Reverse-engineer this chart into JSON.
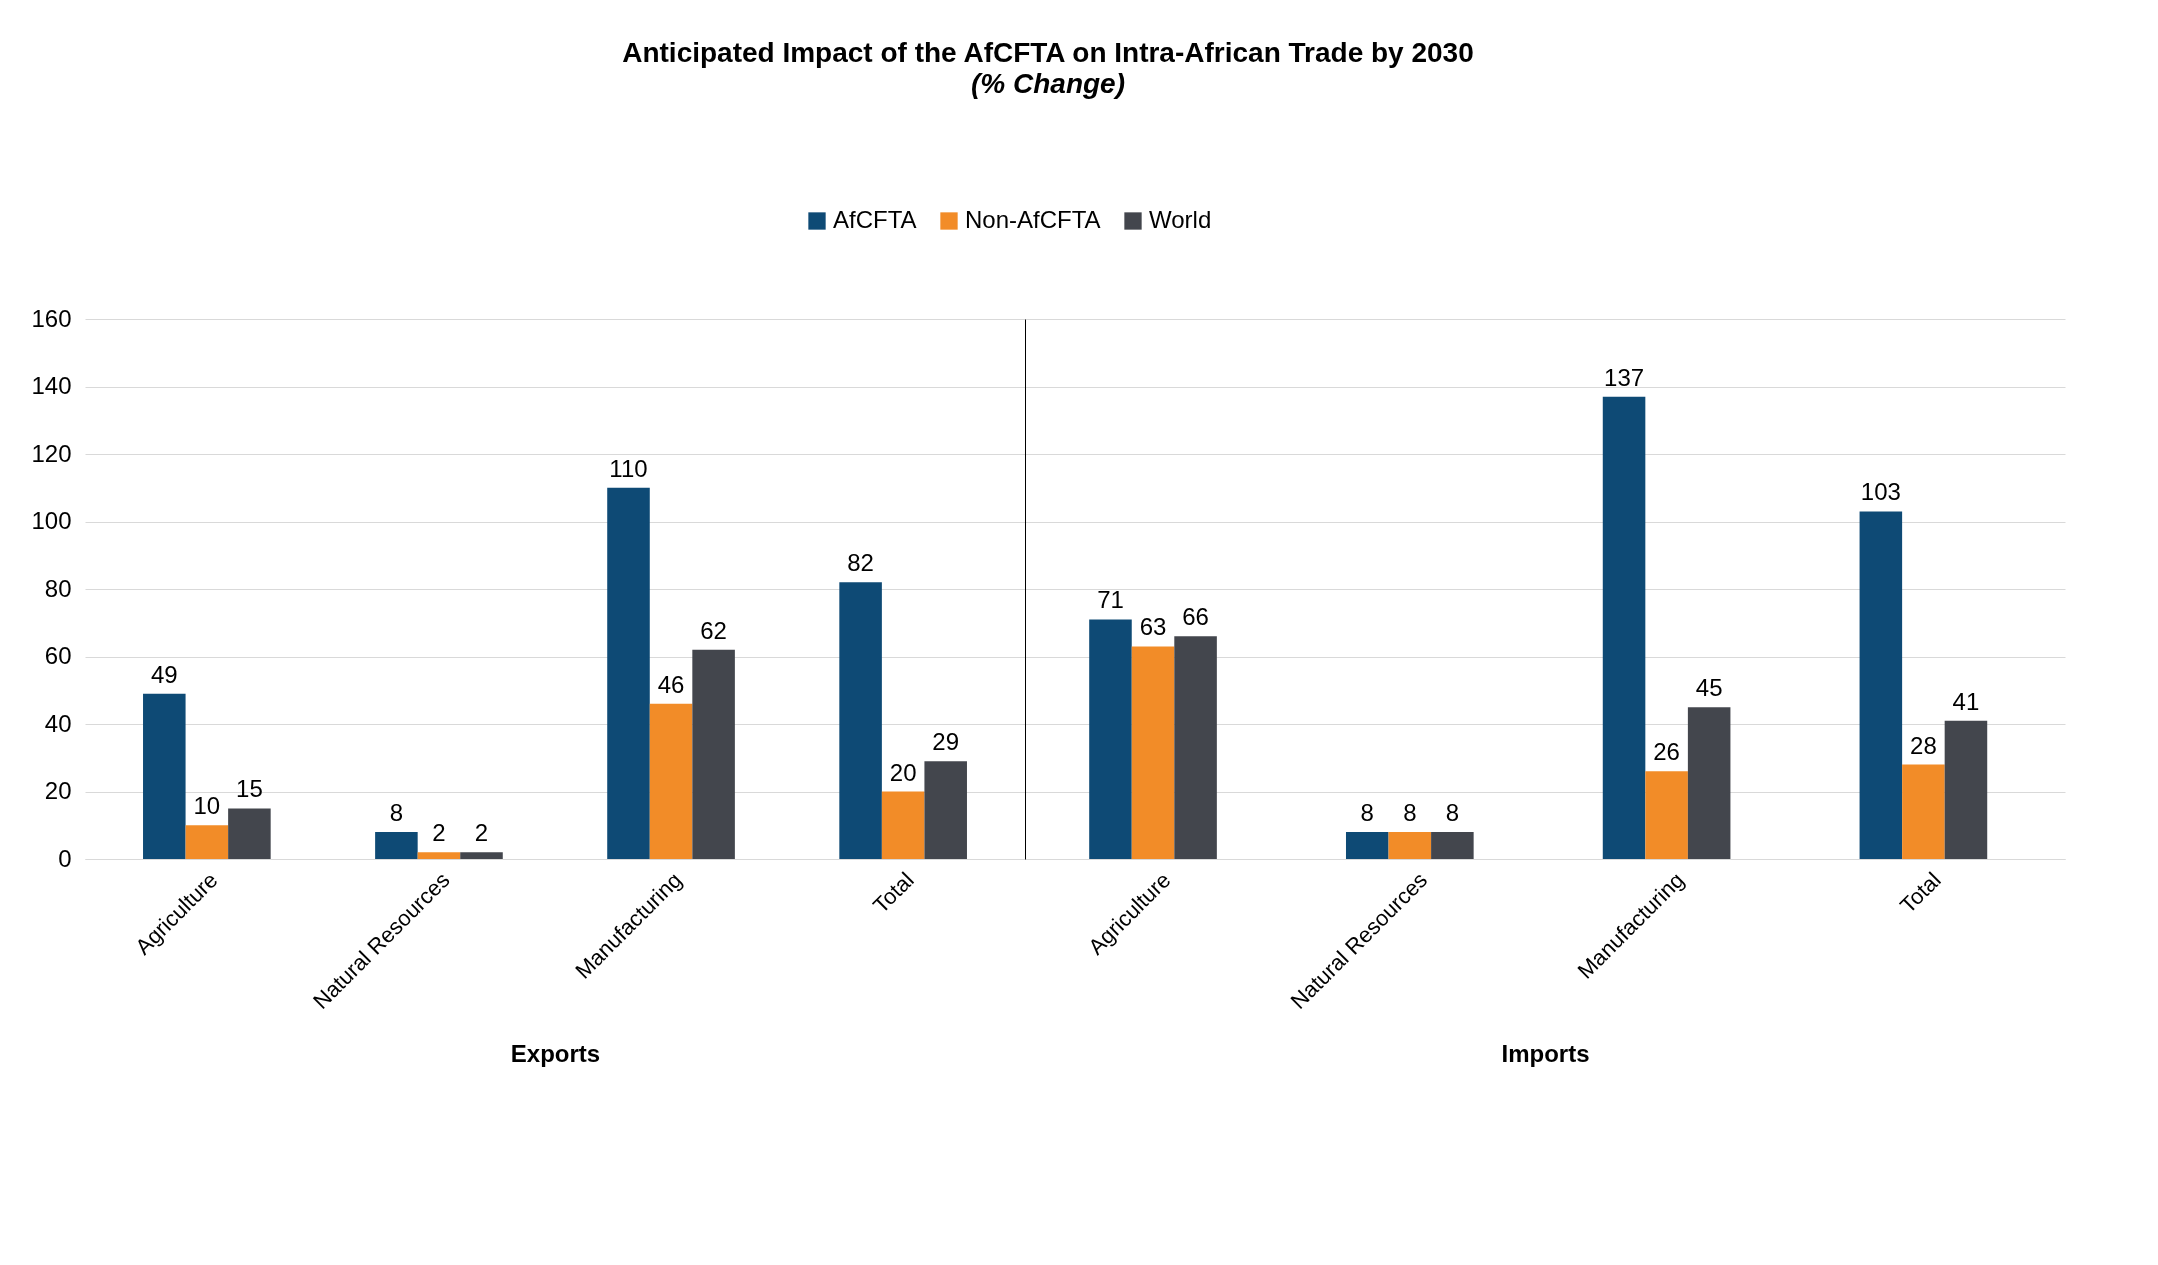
{
  "chart_data": [
    {
      "type": "bar",
      "title": "Anticipated Impact of the AfCFTA on Intra-African Trade by 2030",
      "subtitle": "(% Change)",
      "xlabel": "Exports",
      "categories": [
        "Agriculture",
        "Natural Resources",
        "Manufacturing",
        "Total"
      ],
      "series": [
        {
          "name": "AfCFTA",
          "color": "#0e4a75",
          "values": [
            49,
            8,
            110,
            82
          ]
        },
        {
          "name": "Non-AfCFTA",
          "color": "#f28c28",
          "values": [
            10,
            2,
            46,
            20
          ]
        },
        {
          "name": "World",
          "color": "#43464d",
          "values": [
            15,
            2,
            62,
            29
          ]
        }
      ],
      "ylim": [
        0,
        160
      ],
      "yticks": [
        0,
        20,
        40,
        60,
        80,
        100,
        120,
        140,
        160
      ],
      "grid": "y",
      "legend": "top",
      "data_labels": true
    },
    {
      "type": "bar",
      "xlabel": "Imports",
      "categories": [
        "Agriculture",
        "Natural Resources",
        "Manufacturing",
        "Total"
      ],
      "series": [
        {
          "name": "AfCFTA",
          "color": "#0e4a75",
          "values": [
            71,
            8,
            137,
            103
          ]
        },
        {
          "name": "Non-AfCFTA",
          "color": "#f28c28",
          "values": [
            63,
            8,
            26,
            28
          ]
        },
        {
          "name": "World",
          "color": "#43464d",
          "values": [
            66,
            8,
            45,
            41
          ]
        }
      ],
      "ylim": [
        0,
        160
      ],
      "yticks": [
        0,
        20,
        40,
        60,
        80,
        100,
        120,
        140,
        160
      ],
      "grid": "y",
      "tick_labels": "x",
      "data_labels": true
    }
  ]
}
